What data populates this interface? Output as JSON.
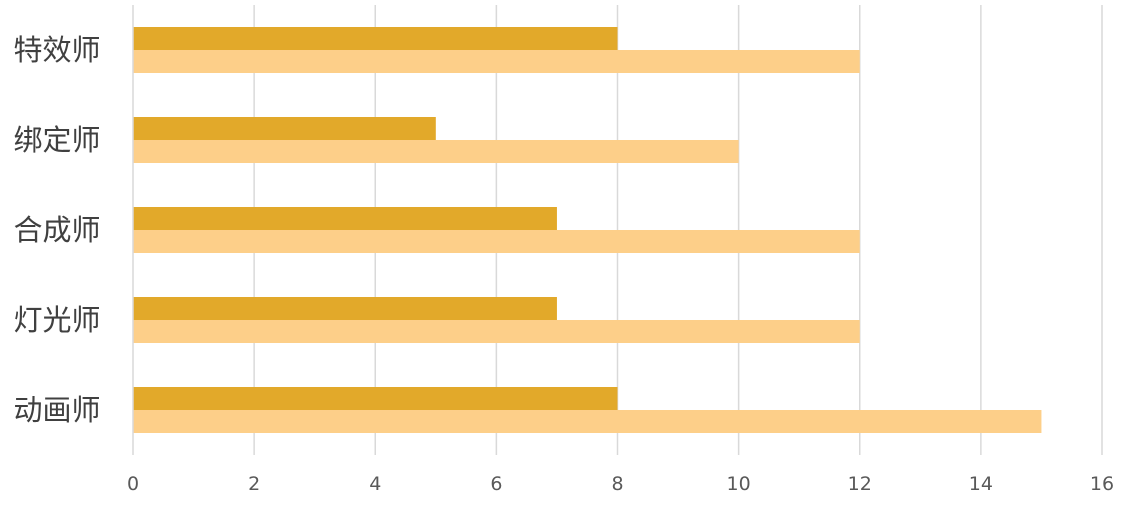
{
  "chart_data": {
    "type": "bar",
    "orientation": "horizontal",
    "categories": [
      "特效师",
      "绑定师",
      "合成师",
      "灯光师",
      "动画师"
    ],
    "series": [
      {
        "values": [
          8,
          5,
          7,
          7,
          8
        ],
        "color": "#E2A92A"
      },
      {
        "values": [
          12,
          10,
          12,
          12,
          15
        ],
        "color": "#FDCF89"
      }
    ],
    "x_ticks": [
      "0",
      "2",
      "4",
      "6",
      "8",
      "10",
      "12",
      "14",
      "16"
    ],
    "xlim": [
      0,
      16
    ],
    "title": "",
    "xlabel": "",
    "ylabel": "",
    "grid": "vertical",
    "legend": "none"
  }
}
